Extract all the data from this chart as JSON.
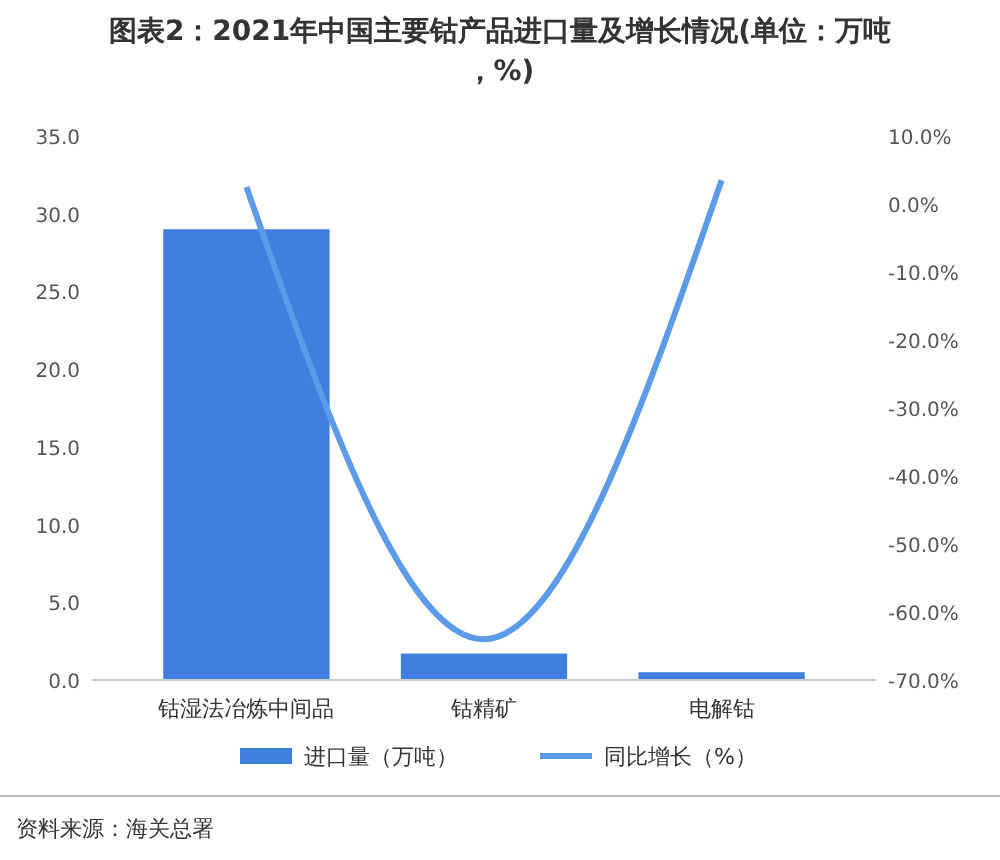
{
  "chart_data": {
    "type": "bar",
    "title": "图表2：2021年中国主要钴产品进口量及增长情况(单位：万吨，%)",
    "categories": [
      "钴湿法冶炼中间品",
      "钴精矿",
      "电解钴"
    ],
    "series": [
      {
        "name": "进口量（万吨）",
        "color": "#3f7fe0",
        "values": [
          29.0,
          1.7,
          0.5
        ]
      },
      {
        "name": "同比增长（%）",
        "color": "#5b9be8",
        "type": "line",
        "axis": "y2",
        "values": [
          2.5,
          -64,
          3.5
        ]
      }
    ],
    "ylim": [
      0,
      35
    ],
    "yticks": [
      {
        "value": 0,
        "label": "0.0"
      },
      {
        "value": 5,
        "label": "5.0"
      },
      {
        "value": 10,
        "label": "10.0"
      },
      {
        "value": 15,
        "label": "15.0"
      },
      {
        "value": 20,
        "label": "20.0"
      },
      {
        "value": 25,
        "label": "25.0"
      },
      {
        "value": 30,
        "label": "30.0"
      },
      {
        "value": 35,
        "label": "35.0"
      }
    ],
    "y2lim": [
      -70,
      10
    ],
    "y2ticks": [
      {
        "value": -70,
        "label": "-70.0%"
      },
      {
        "value": -60,
        "label": "-60.0%"
      },
      {
        "value": -50,
        "label": "-50.0%"
      },
      {
        "value": -40,
        "label": "-40.0%"
      },
      {
        "value": -30,
        "label": "-30.0%"
      },
      {
        "value": -20,
        "label": "-20.0%"
      },
      {
        "value": -10,
        "label": "-10.0%"
      },
      {
        "value": 0,
        "label": "0.0%"
      },
      {
        "value": 10,
        "label": "10.0%"
      }
    ],
    "legend": "bottom",
    "grid": false,
    "annotations": [
      "资料来源：海关总署"
    ]
  }
}
